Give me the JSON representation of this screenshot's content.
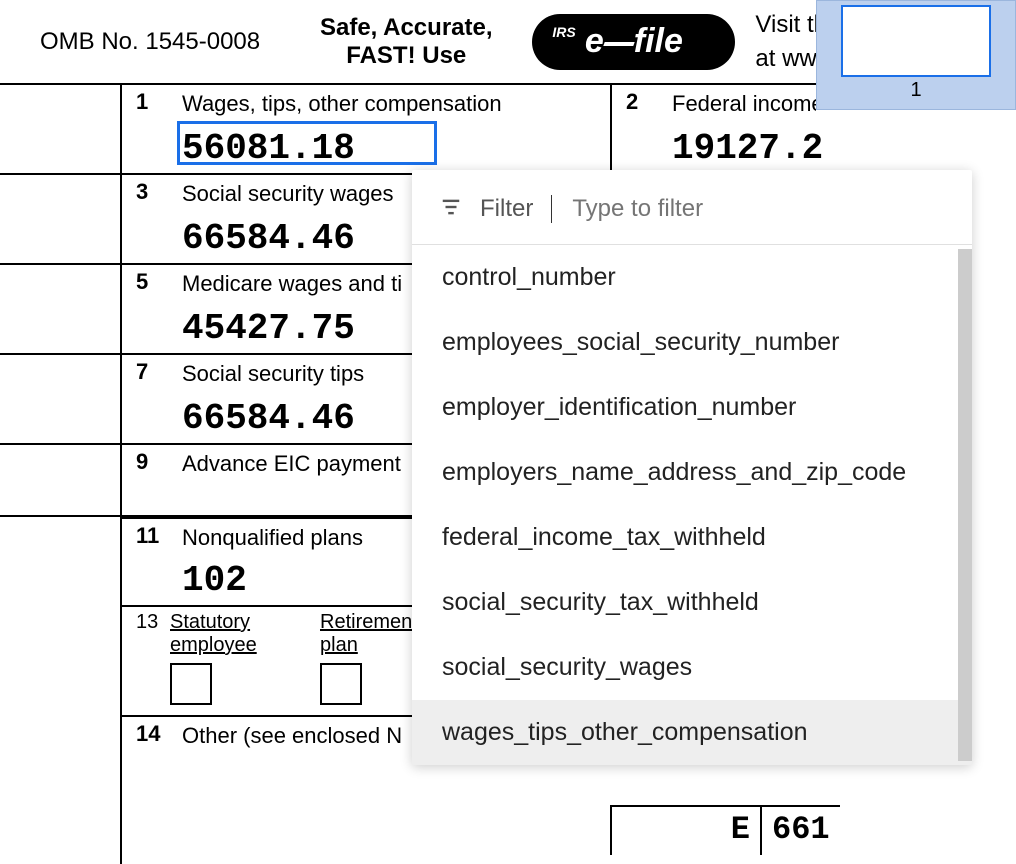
{
  "header": {
    "omb": "OMB No. 1545-0008",
    "tagline_line1": "Safe, Accurate,",
    "tagline_line2": "FAST!  Use",
    "efile_irs": "IRS",
    "efile_text_e": "e",
    "efile_text_file": "file",
    "visit_line1": "Visit tl",
    "visit_line2": "at ww"
  },
  "boxes": {
    "b1": {
      "num": "1",
      "label": "Wages, tips, other compensation",
      "value": "56081.18"
    },
    "b2": {
      "num": "2",
      "label": "Federal income",
      "value": "19127.2"
    },
    "b3": {
      "num": "3",
      "label": "Social security wages",
      "value": "66584.46"
    },
    "b5": {
      "num": "5",
      "label": "Medicare wages and ti",
      "value": "45427.75"
    },
    "b7": {
      "num": "7",
      "label": "Social security tips",
      "value": "66584.46"
    },
    "b9": {
      "num": "9",
      "label": "Advance EIC payment",
      "value": ""
    },
    "b11": {
      "num": "11",
      "label": "Nonqualified plans",
      "value": "102"
    },
    "b13": {
      "num": "13",
      "sub1a": "Statutory",
      "sub1b": "employee",
      "sub2a": "Retirement",
      "sub2b": "plan"
    },
    "b14": {
      "num": "14",
      "label": "Other (see enclosed N",
      "value": ""
    }
  },
  "bottom_right": {
    "code": "E",
    "amount": "661"
  },
  "thumbnail": {
    "page": "1"
  },
  "dropdown": {
    "filter_label": "Filter",
    "filter_placeholder": "Type to filter",
    "items": [
      "control_number",
      "employees_social_security_number",
      "employer_identification_number",
      "employers_name_address_and_zip_code",
      "federal_income_tax_withheld",
      "social_security_tax_withheld",
      "social_security_wages",
      "wages_tips_other_compensation"
    ],
    "highlighted_index": 7
  },
  "colors": {
    "highlight_border": "#1a6fe8",
    "thumb_panel_bg": "#bcd0ee",
    "dd_highlight_bg": "#eeeeee"
  }
}
